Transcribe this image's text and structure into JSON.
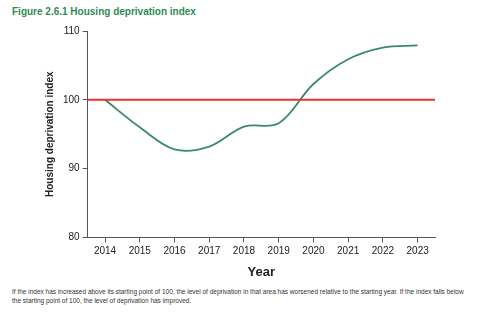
{
  "chart_data": {
    "type": "line",
    "title": "Figure 2.6.1 Housing deprivation index",
    "x_label": "Year",
    "y_label": "Housing deprivation index",
    "categories": [
      "2014",
      "2015",
      "2016",
      "2017",
      "2018",
      "2019",
      "2020",
      "2021",
      "2022",
      "2023"
    ],
    "values": [
      100,
      96,
      92.8,
      93.2,
      96.1,
      96.6,
      102.3,
      105.9,
      107.6,
      107.9
    ],
    "color": "#3a8a66",
    "ylim": [
      80,
      110
    ],
    "yticks": [
      80,
      90,
      100,
      110
    ],
    "grid": false,
    "reference_line": {
      "value": 100,
      "color": "#e8322d"
    },
    "footnote": "If the index has increased above its starting point of 100, the level of deprivation in that area has worsened relative to the starting year. If the index falls below the starting point of 100, the level of deprivation has improved."
  }
}
